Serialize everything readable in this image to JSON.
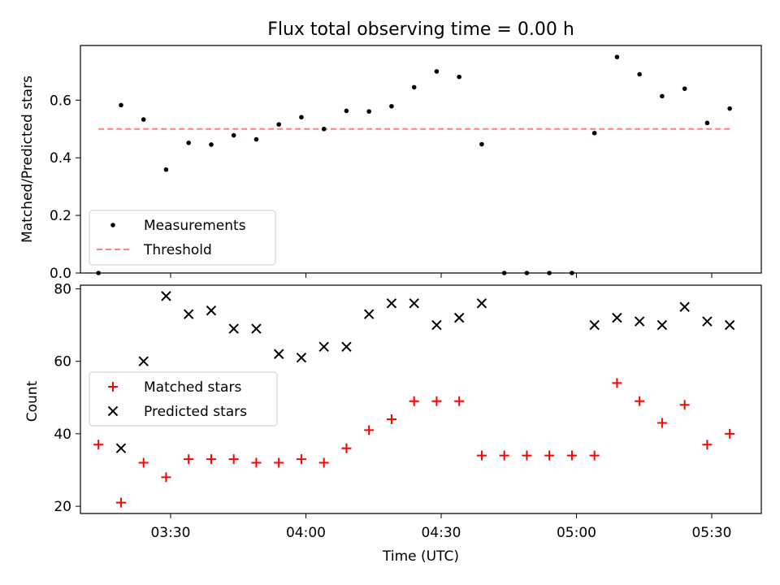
{
  "chart_data": [
    {
      "type": "scatter",
      "title": "Flux total observing time = 0.00 h",
      "xlabel": "",
      "ylabel": "Matched/Predicted stars",
      "ylim": [
        0,
        0.79
      ],
      "yticks": [
        "0.0",
        "0.2",
        "0.4",
        "0.6"
      ],
      "x": [
        "03:14",
        "03:19",
        "03:24",
        "03:29",
        "03:34",
        "03:39",
        "03:44",
        "03:49",
        "03:54",
        "03:59",
        "04:04",
        "04:09",
        "04:14",
        "04:19",
        "04:24",
        "04:29",
        "04:34",
        "04:39",
        "04:44",
        "04:49",
        "04:54",
        "04:59",
        "05:04",
        "05:09",
        "05:14",
        "05:19",
        "05:24",
        "05:29",
        "05:34"
      ],
      "series": [
        {
          "name": "Measurements",
          "values": [
            0.0,
            0.583,
            0.533,
            0.359,
            0.452,
            0.446,
            0.478,
            0.464,
            0.516,
            0.541,
            0.5,
            0.563,
            0.561,
            0.579,
            0.645,
            0.7,
            0.681,
            0.447,
            0.0,
            0.0,
            0.0,
            0.0,
            0.486,
            0.75,
            0.69,
            0.614,
            0.64,
            0.521,
            0.571
          ],
          "color": "#000000"
        },
        {
          "name": "Threshold",
          "value": 0.5,
          "x_range": [
            "03:14",
            "05:34"
          ],
          "color": "#ff7f7f",
          "style": "dashed"
        }
      ],
      "legend": "lower-left"
    },
    {
      "type": "scatter",
      "title": "",
      "xlabel": "Time (UTC)",
      "ylabel": "Count",
      "ylim": [
        18,
        81
      ],
      "yticks": [
        "20",
        "40",
        "60",
        "80"
      ],
      "xlim": [
        "03:10",
        "05:41"
      ],
      "xticks": [
        "03:30",
        "04:00",
        "04:30",
        "05:00",
        "05:30"
      ],
      "x": [
        "03:14",
        "03:19",
        "03:24",
        "03:29",
        "03:34",
        "03:39",
        "03:44",
        "03:49",
        "03:54",
        "03:59",
        "04:04",
        "04:09",
        "04:14",
        "04:19",
        "04:24",
        "04:29",
        "04:34",
        "04:39",
        "04:44",
        "04:49",
        "04:54",
        "04:59",
        "05:04",
        "05:09",
        "05:14",
        "05:19",
        "05:24",
        "05:29",
        "05:34"
      ],
      "series": [
        {
          "name": "Matched stars",
          "values": [
            37,
            21,
            32,
            28,
            33,
            33,
            33,
            32,
            32,
            33,
            32,
            36,
            41,
            44,
            49,
            49,
            49,
            34,
            34,
            34,
            34,
            34,
            34,
            54,
            49,
            43,
            48,
            37,
            40
          ],
          "color": "#ff0000",
          "marker": "+"
        },
        {
          "name": "Predicted stars",
          "values": [
            null,
            36,
            60,
            78,
            73,
            74,
            69,
            69,
            62,
            61,
            64,
            64,
            73,
            76,
            76,
            70,
            72,
            76,
            null,
            null,
            null,
            null,
            70,
            72,
            71,
            70,
            75,
            71,
            70
          ],
          "color": "#000000",
          "marker": "x"
        }
      ],
      "legend": "center-left"
    }
  ]
}
